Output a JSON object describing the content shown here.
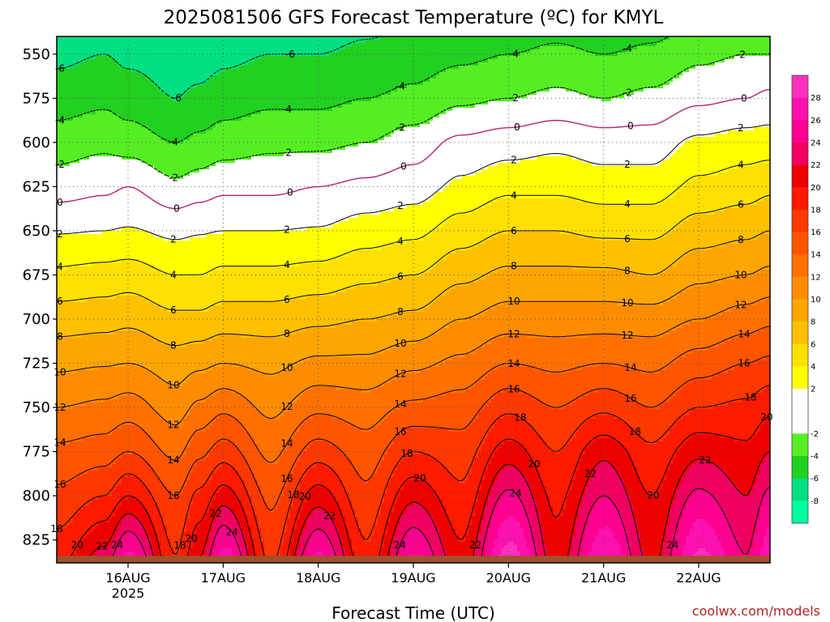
{
  "chart_data": {
    "type": "heatmap",
    "title": "2025081506 GFS Forecast Temperature (ºC) for KMYL",
    "xlabel": "Forecast Time (UTC)",
    "credit": "coolwx.com/models",
    "y_axis": {
      "label": "",
      "ticks": [
        550,
        575,
        600,
        625,
        650,
        675,
        700,
        725,
        750,
        775,
        800,
        825
      ],
      "range": [
        540,
        838
      ],
      "inverted": true
    },
    "x_axis": {
      "ticks": [
        {
          "label": "16AUG",
          "sub": "2025",
          "day": 16
        },
        {
          "label": "17AUG",
          "sub": "",
          "day": 17
        },
        {
          "label": "18AUG",
          "sub": "",
          "day": 18
        },
        {
          "label": "19AUG",
          "sub": "",
          "day": 19
        },
        {
          "label": "20AUG",
          "sub": "",
          "day": 20
        },
        {
          "label": "21AUG",
          "sub": "",
          "day": 21
        },
        {
          "label": "22AUG",
          "sub": "",
          "day": 22
        }
      ],
      "range_days": [
        15.25,
        22.75
      ]
    },
    "grid": true,
    "terrain_color": "#a0522d",
    "colorbar": {
      "placement": "right",
      "levels": [
        -10,
        -8,
        -6,
        -4,
        -2,
        0,
        2,
        4,
        6,
        8,
        10,
        12,
        14,
        16,
        18,
        20,
        22,
        24,
        26,
        28,
        30
      ],
      "tick_labels": [
        "-8",
        "-6",
        "-4",
        "-2",
        "2",
        "4",
        "6",
        "8",
        "10",
        "12",
        "14",
        "16",
        "18",
        "20",
        "22",
        "24",
        "26",
        "28"
      ],
      "colors": [
        "#00ffa0",
        "#00e080",
        "#22d020",
        "#55ee22",
        "#ffffff",
        "#ffffff",
        "#ffff00",
        "#ffe000",
        "#ffc000",
        "#ffa500",
        "#ff8c00",
        "#ff7000",
        "#ff5500",
        "#ff3800",
        "#ff1a00",
        "#ee0000",
        "#f00060",
        "#ff0090",
        "#ff10b0",
        "#ff30c0"
      ]
    },
    "contour_levels": [
      -6,
      -4,
      -2,
      0,
      2,
      4,
      6,
      8,
      10,
      12,
      14,
      16,
      18,
      20,
      22,
      24
    ],
    "zero_line_color": "#b0207a",
    "series": [
      {
        "day": 15.25,
        "temps": [
          -6.5,
          -5.0,
          -3.0,
          -1.0,
          1.8,
          4.5,
          7.0,
          9.5,
          12.0,
          14.5,
          16.5,
          18.5
        ]
      },
      {
        "day": 15.75,
        "temps": [
          -6.0,
          -4.5,
          -2.5,
          -0.5,
          2.0,
          4.8,
          7.2,
          9.8,
          12.5,
          15.0,
          18.0,
          21.5
        ]
      },
      {
        "day": 16.0,
        "temps": [
          -6.5,
          -5.0,
          -3.0,
          0.0,
          2.2,
          5.0,
          7.5,
          10.0,
          13.0,
          16.0,
          20.0,
          25.0
        ]
      },
      {
        "day": 16.5,
        "temps": [
          -7.0,
          -6.0,
          -4.0,
          -1.5,
          1.5,
          4.0,
          6.5,
          9.0,
          11.0,
          13.5,
          16.0,
          17.5
        ]
      },
      {
        "day": 16.75,
        "temps": [
          -7.0,
          -5.5,
          -3.5,
          -1.0,
          1.8,
          4.0,
          6.5,
          9.5,
          12.5,
          15.5,
          18.5,
          21.0
        ]
      },
      {
        "day": 17.0,
        "temps": [
          -6.5,
          -5.0,
          -3.0,
          -0.5,
          2.0,
          4.5,
          7.0,
          10.0,
          13.5,
          17.0,
          21.0,
          25.5
        ]
      },
      {
        "day": 17.5,
        "temps": [
          -6.0,
          -4.5,
          -2.5,
          -0.5,
          2.0,
          4.5,
          7.0,
          9.5,
          11.5,
          13.5,
          15.5,
          17.0
        ]
      },
      {
        "day": 18.0,
        "temps": [
          -6.0,
          -4.5,
          -2.5,
          0.0,
          2.2,
          4.8,
          7.5,
          10.5,
          13.5,
          17.0,
          21.0,
          25.0
        ]
      },
      {
        "day": 18.5,
        "temps": [
          -5.5,
          -4.0,
          -2.0,
          0.5,
          3.0,
          5.5,
          8.0,
          10.5,
          13.0,
          15.0,
          16.5,
          18.0
        ]
      },
      {
        "day": 19.0,
        "temps": [
          -5.0,
          -3.5,
          -1.0,
          1.0,
          3.5,
          6.0,
          8.5,
          11.5,
          14.5,
          18.0,
          21.5,
          25.0
        ]
      },
      {
        "day": 19.5,
        "temps": [
          -4.5,
          -2.5,
          0.5,
          2.5,
          5.0,
          7.5,
          10.0,
          12.5,
          15.0,
          17.0,
          18.5,
          20.0
        ]
      },
      {
        "day": 20.0,
        "temps": [
          -4.0,
          -2.0,
          1.0,
          3.5,
          6.0,
          8.5,
          11.0,
          14.0,
          17.5,
          21.0,
          24.5,
          28.0
        ]
      },
      {
        "day": 20.5,
        "temps": [
          -3.5,
          -1.5,
          1.5,
          3.5,
          6.0,
          8.5,
          11.0,
          13.5,
          16.0,
          18.0,
          19.5,
          20.5
        ]
      },
      {
        "day": 21.0,
        "temps": [
          -4.0,
          -2.0,
          1.0,
          3.0,
          5.5,
          8.5,
          11.0,
          14.0,
          17.5,
          21.5,
          24.0,
          27.0
        ]
      },
      {
        "day": 21.5,
        "temps": [
          -3.5,
          -1.5,
          1.0,
          3.0,
          5.5,
          8.0,
          11.0,
          13.5,
          16.0,
          18.5,
          20.0,
          21.0
        ]
      },
      {
        "day": 22.0,
        "temps": [
          -2.5,
          -0.5,
          2.5,
          4.5,
          7.0,
          9.5,
          12.0,
          15.0,
          18.0,
          21.5,
          24.5,
          27.5
        ]
      },
      {
        "day": 22.5,
        "temps": [
          -2.0,
          0.0,
          3.0,
          5.0,
          7.5,
          10.0,
          13.0,
          16.0,
          18.5,
          20.5,
          22.0,
          23.5
        ]
      },
      {
        "day": 22.75,
        "temps": [
          -2.0,
          0.5,
          3.0,
          5.5,
          8.0,
          10.5,
          13.5,
          16.5,
          19.5,
          22.0,
          24.5,
          27.0
        ]
      }
    ]
  }
}
